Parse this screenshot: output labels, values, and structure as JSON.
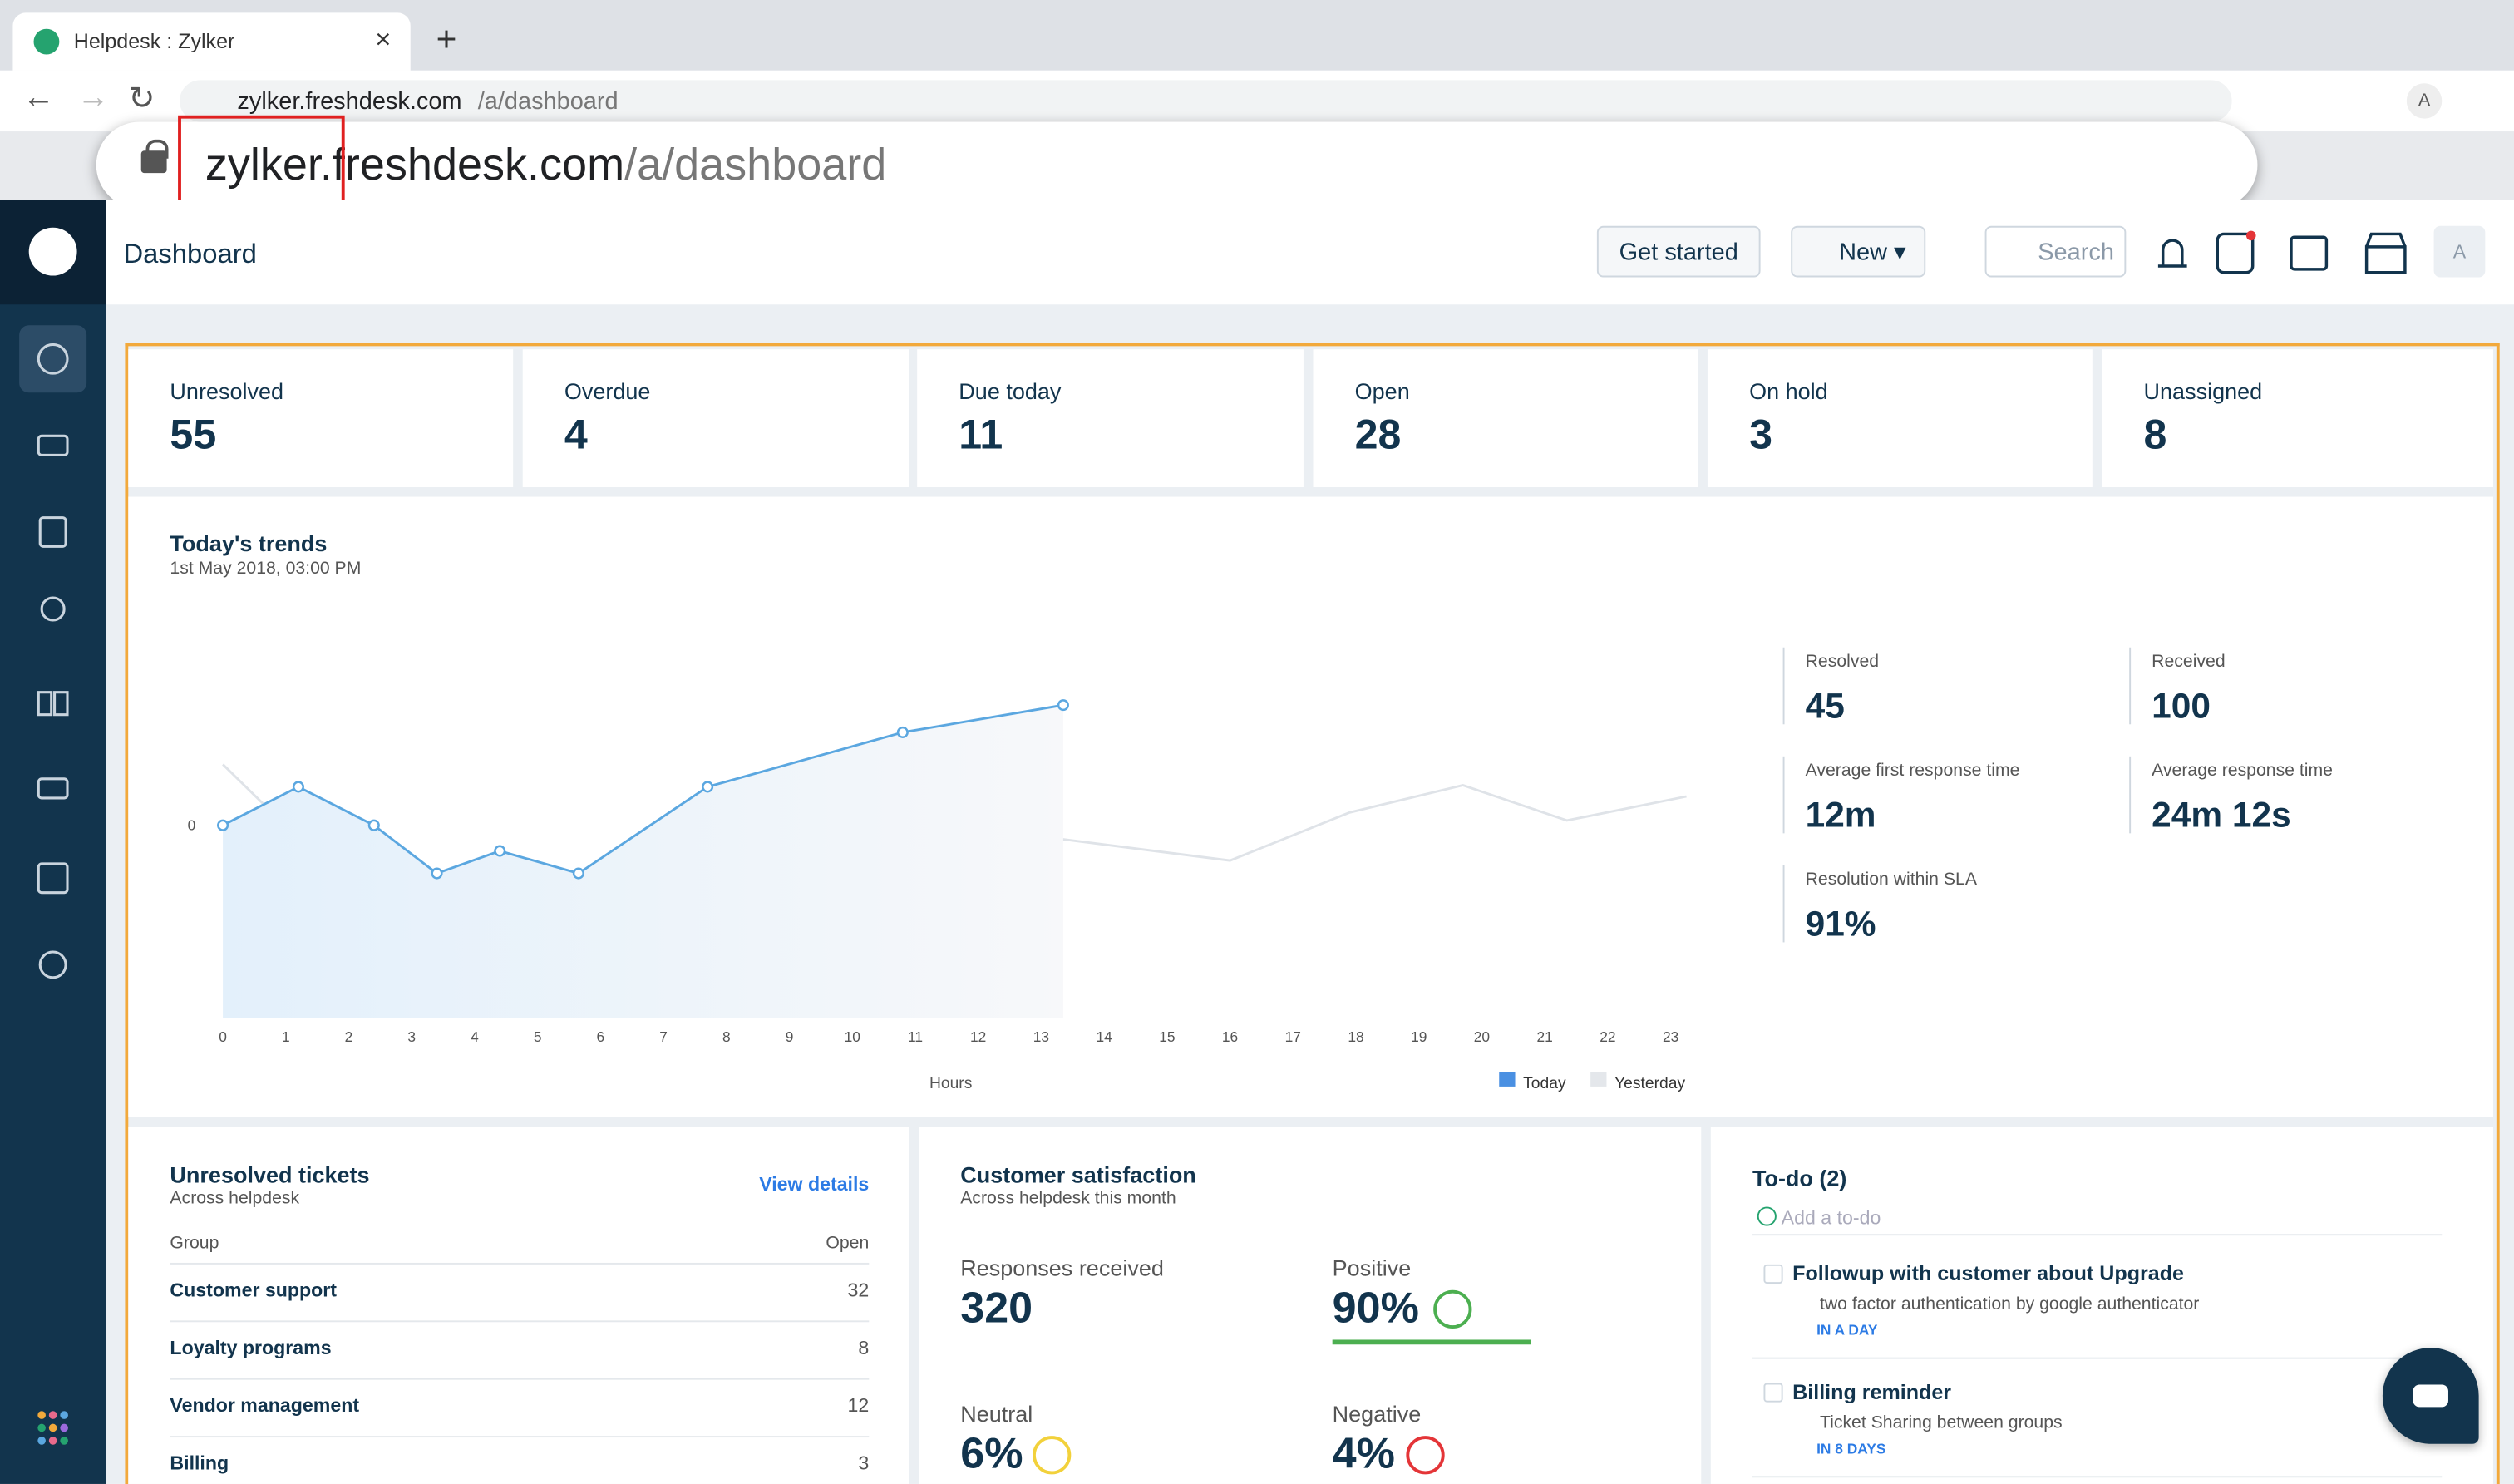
{
  "browser": {
    "tab_title": "Helpdesk : Zylker",
    "url_host": "zylker.freshdesk.com",
    "url_path": "/a/dashboard",
    "zoom_parts": [
      "zylker",
      ".freshdesk.com",
      "/a/dashboard"
    ],
    "profile": "A"
  },
  "header": {
    "title": "Dashboard",
    "get_started": "Get started",
    "new": "New",
    "search": "Search",
    "avatar": "A"
  },
  "cards": [
    {
      "label": "Unresolved",
      "value": 55
    },
    {
      "label": "Overdue",
      "value": 4
    },
    {
      "label": "Due today",
      "value": 11
    },
    {
      "label": "Open",
      "value": 28
    },
    {
      "label": "On hold",
      "value": 3
    },
    {
      "label": "Unassigned",
      "value": 8
    }
  ],
  "trends": {
    "title": "Today's trends",
    "subtitle": "1st May 2018, 03:00 PM",
    "chart_data": {
      "type": "line",
      "x_label": "Hours",
      "xlim": [
        0,
        23
      ],
      "xticks": [
        0,
        1,
        2,
        3,
        4,
        5,
        6,
        7,
        8,
        9,
        10,
        11,
        12,
        13,
        14,
        15,
        16,
        17,
        18,
        19,
        20,
        21,
        22,
        23
      ],
      "ylim": [
        -12,
        12
      ],
      "yticks": [
        0
      ],
      "series": [
        {
          "name": "Today",
          "color": "#5ba7e0",
          "x": [
            0,
            1.2,
            2.4,
            3.4,
            4.4,
            5.65,
            7.7,
            10.8,
            13.35
          ],
          "values": [
            0,
            2.4,
            0,
            -3,
            -1.6,
            -3,
            2.4,
            5.8,
            7.5
          ]
        },
        {
          "name": "Yesterday",
          "color": "#dfe3e8",
          "x": [
            0,
            1.2,
            2.4,
            3.4,
            4.6,
            5.95,
            7.7,
            10.25,
            12.6,
            16,
            17.9,
            19.7,
            21.35,
            23.25
          ],
          "values": [
            3.8,
            -0.8,
            -3,
            -6.3,
            -5.1,
            -6.5,
            -1.8,
            -4.7,
            -0.5,
            -2.2,
            0.8,
            2.5,
            0.3,
            1.8
          ]
        }
      ]
    },
    "stats": [
      {
        "label": "Resolved",
        "value": "45"
      },
      {
        "label": "Received",
        "value": "100"
      },
      {
        "label": "Average first response time",
        "value": "12m"
      },
      {
        "label": "Average response time",
        "value": "24m 12s"
      },
      {
        "label": "Resolution within SLA",
        "value": "91%"
      }
    ]
  },
  "unresolved": {
    "title": "Unresolved tickets",
    "subtitle": "Across helpdesk",
    "link": "View details",
    "columns": [
      "Group",
      "Open"
    ],
    "rows": [
      [
        "Customer support",
        32
      ],
      [
        "Loyalty programs",
        8
      ],
      [
        "Vendor management",
        12
      ],
      [
        "Billing",
        3
      ]
    ]
  },
  "csat": {
    "title": "Customer satisfaction",
    "subtitle": "Across helpdesk this month",
    "items": [
      {
        "label": "Responses received",
        "value": "320"
      },
      {
        "label": "Positive",
        "value": "90%"
      },
      {
        "label": "Neutral",
        "value": "6%"
      },
      {
        "label": "Negative",
        "value": "4%"
      }
    ]
  },
  "todo": {
    "title": "To-do (2)",
    "add": "Add a to-do",
    "items": [
      {
        "title": "Followup with customer about Upgrade",
        "desc": "two factor authentication by google authenticator",
        "due": "IN A DAY"
      },
      {
        "title": "Billing reminder",
        "desc": "Ticket Sharing between groups",
        "due": "IN 8 DAYS"
      }
    ]
  }
}
